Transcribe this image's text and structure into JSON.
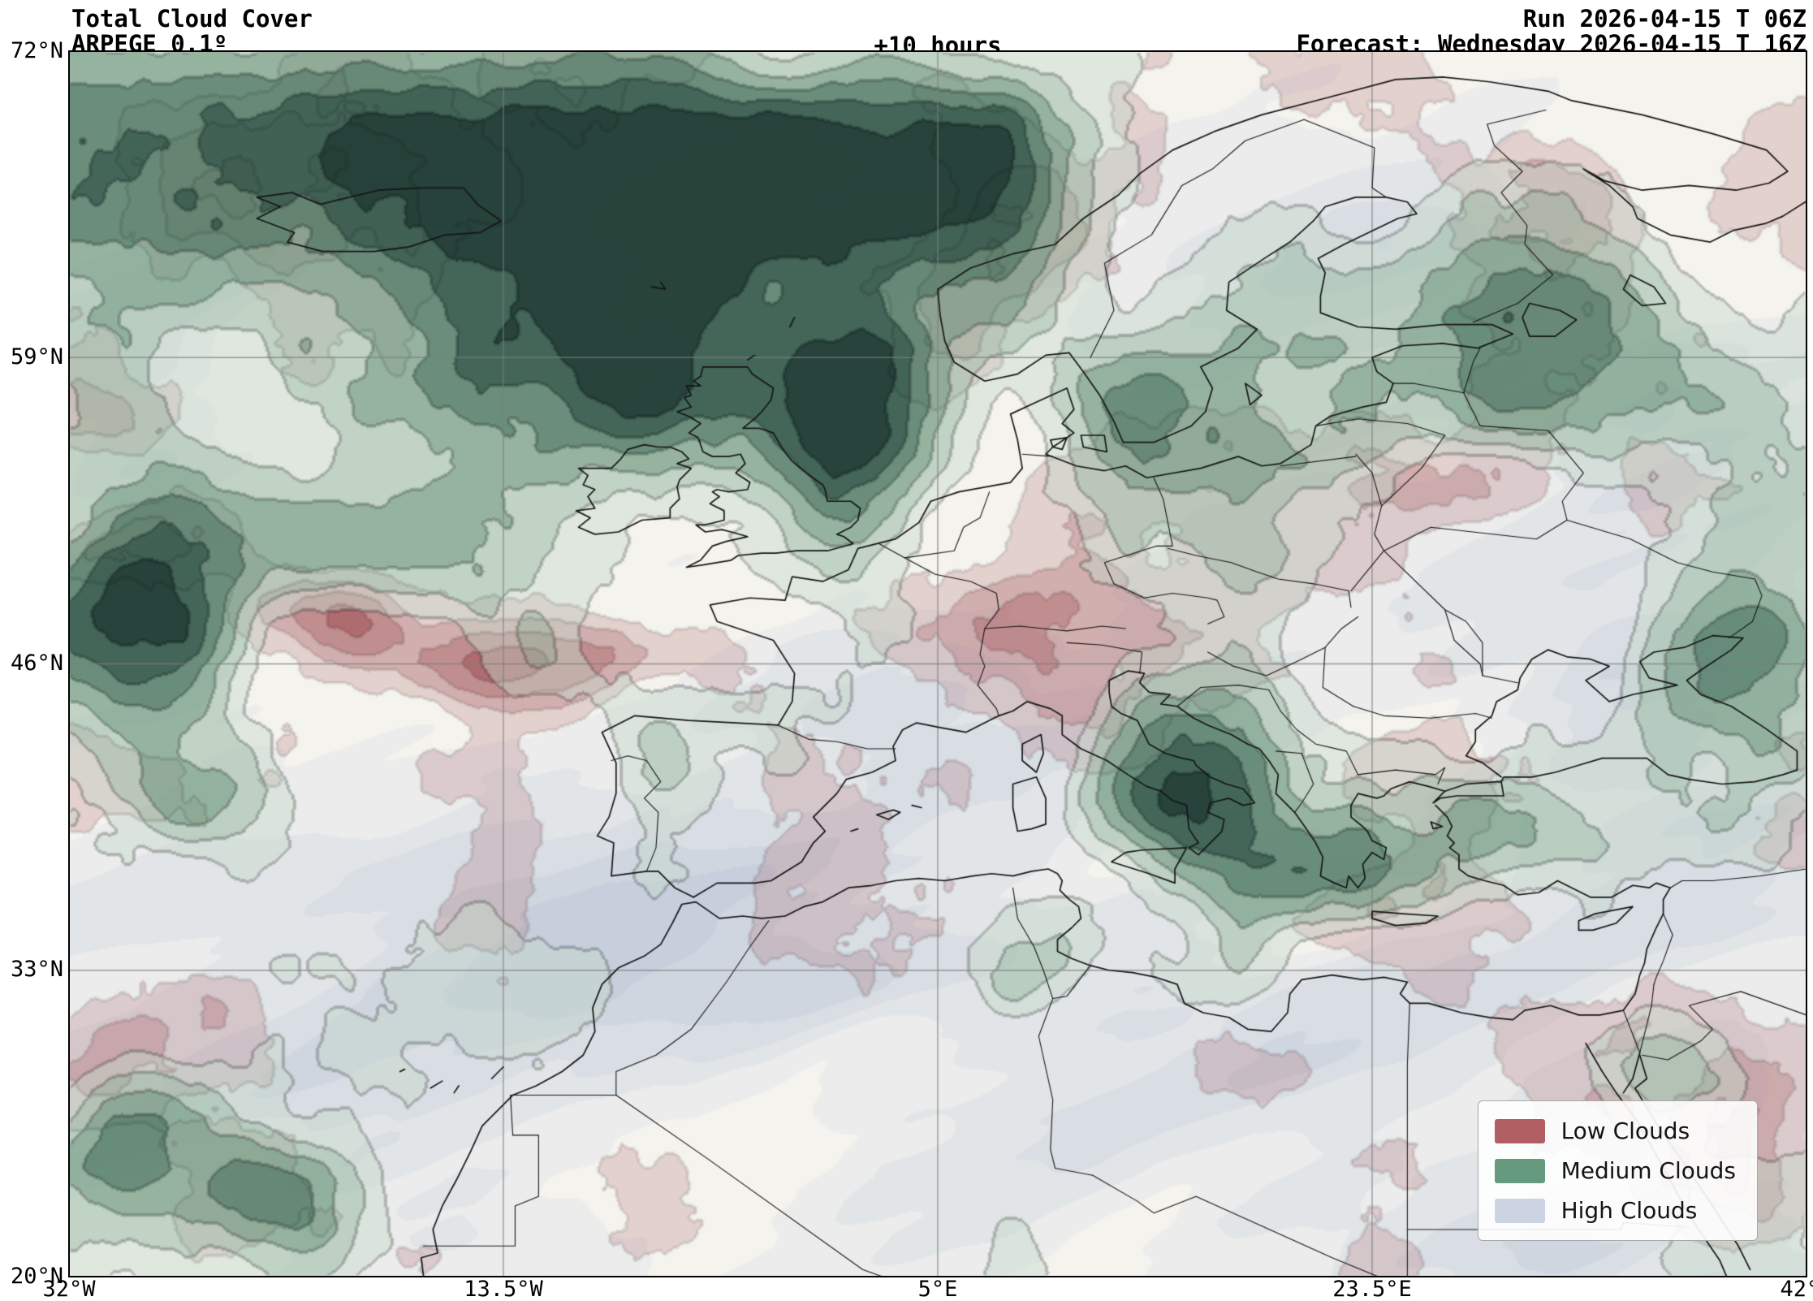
{
  "header": {
    "title": "Total Cloud Cover",
    "model": "ARPEGE 0.1º",
    "lead_time": "+10 hours",
    "run": "Run 2026-04-15 T 06Z",
    "forecast": "Forecast: Wednesday 2026-04-15 T 16Z"
  },
  "map": {
    "x_ticks": [
      "32°W",
      "13.5°W",
      "5°E",
      "23.5°E",
      "42°E"
    ],
    "y_ticks": [
      "72°N",
      "59°N",
      "46°N",
      "33°N",
      "20°N"
    ],
    "lon_range": [
      -32,
      42
    ],
    "lat_range": [
      20,
      72
    ]
  },
  "legend": {
    "items": [
      {
        "label": "Low Clouds",
        "color": "#b25f63"
      },
      {
        "label": "Medium Clouds",
        "color": "#669a7e"
      },
      {
        "label": "High Clouds",
        "color": "#ccd4e3"
      }
    ]
  },
  "colors": {
    "map_background": "#f2f1ec",
    "coastline": "#161616",
    "grid": "#7d7d7d",
    "frame": "#000000"
  }
}
